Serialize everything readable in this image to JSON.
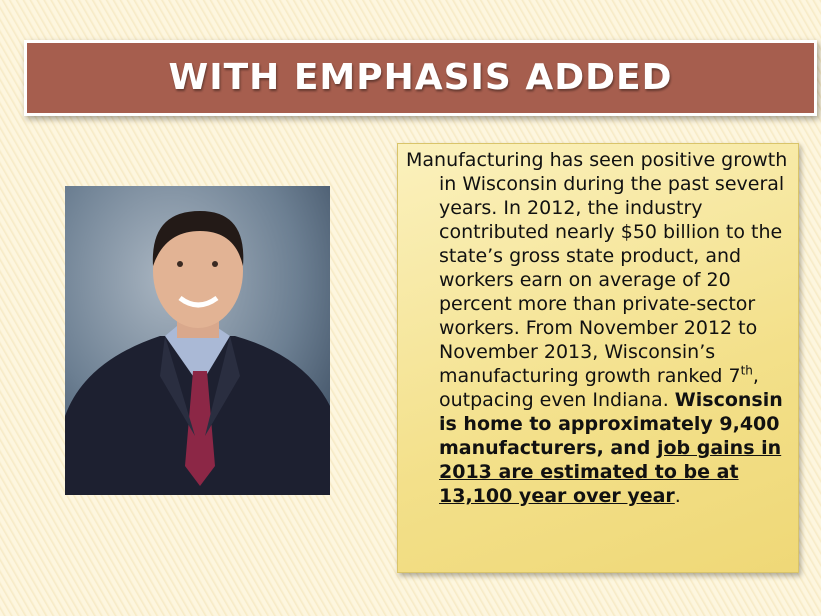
{
  "slide": {
    "title": "WITH EMPHASIS ADDED",
    "body": {
      "plain_1": "Manufacturing has seen positive growth in Wisconsin during the past several years.  In 2012, the industry contributed nearly $50 billion to the state’s gross state product, and workers earn on average of 20 percent more than private-sector workers.  From November 2012 to November 2013, Wisconsin’s manufacturing growth ranked 7",
      "superscript": "th",
      "plain_2": ", outpacing even Indiana.  ",
      "bold": "Wisconsin is home to approximately 9,400 manufacturers, and ",
      "bold_underlined": "job gains in 2013 are estimated to be at 13,100 year over year",
      "end": "."
    }
  }
}
